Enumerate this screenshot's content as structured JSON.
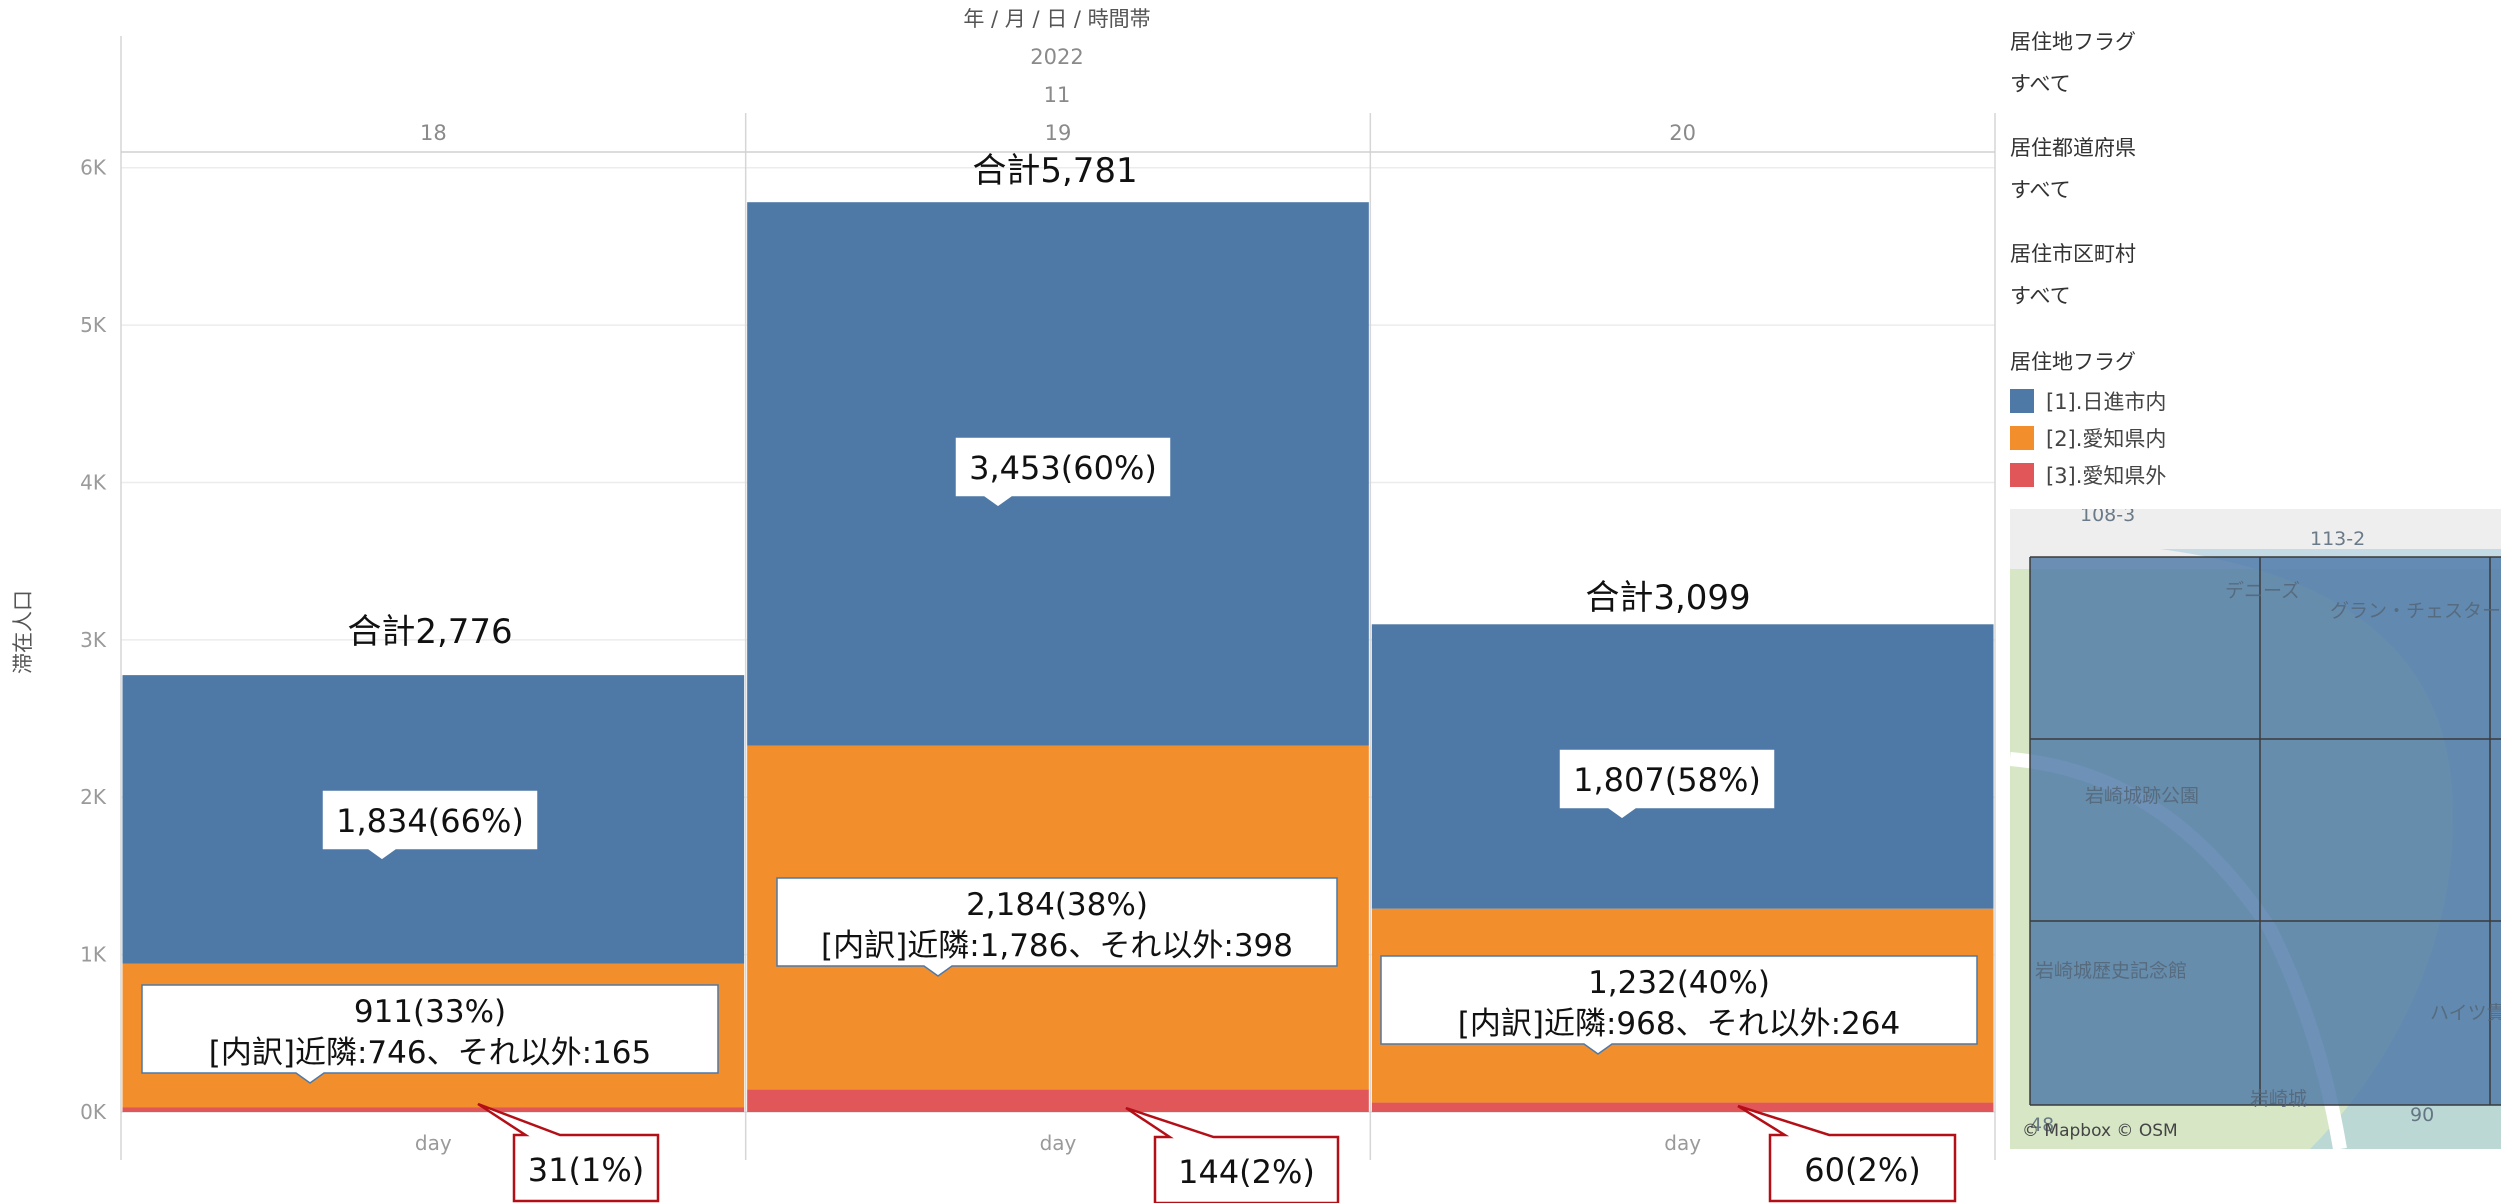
{
  "header": {
    "title": "年 / 月 / 日 / 時間帯",
    "year": "2022",
    "month": "11",
    "days": [
      "18",
      "19",
      "20"
    ]
  },
  "chart_data": {
    "type": "bar",
    "stacked": true,
    "categories": [
      "18",
      "19",
      "20"
    ],
    "x_tick_label": "day",
    "ylabel": "滞在人口",
    "ylim": [
      0,
      6100
    ],
    "yticks": [
      "0K",
      "1K",
      "2K",
      "3K",
      "4K",
      "5K",
      "6K"
    ],
    "ytick_values": [
      0,
      1000,
      2000,
      3000,
      4000,
      5000,
      6000
    ],
    "series": [
      {
        "name": "[3].愛知県外",
        "values": [
          31,
          144,
          60
        ],
        "color": "#e15759"
      },
      {
        "name": "[2].愛知県内",
        "values": [
          911,
          2184,
          1232
        ],
        "color": "#f28e2b"
      },
      {
        "name": "[1].日進市内",
        "values": [
          1834,
          3453,
          1807
        ],
        "color": "#4e79a7"
      }
    ],
    "totals": [
      2776,
      5781,
      3099
    ],
    "total_labels": [
      "合計2,776",
      "合計5,781",
      "合計3,099"
    ],
    "annotations": {
      "blue": [
        "1,834(66%)",
        "3,453(60%)",
        "1,807(58%)"
      ],
      "orange_line1": [
        "911(33%)",
        "2,184(38%)",
        "1,232(40%)"
      ],
      "orange_line2": [
        "[内訳]近隣:746、それ以外:165",
        "[内訳]近隣:1,786、それ以外:398",
        "[内訳]近隣:968、それ以外:264"
      ],
      "red": [
        "31(1%)",
        "144(2%)",
        "60(2%)"
      ]
    },
    "grid": true
  },
  "filters": [
    {
      "title": "居住地フラグ",
      "value": "すべて"
    },
    {
      "title": "居住都道府県",
      "value": "すべて"
    },
    {
      "title": "居住市区町村",
      "value": "すべて"
    }
  ],
  "legend": {
    "title": "居住地フラグ",
    "items": [
      {
        "label": "[1].日進市内",
        "color": "#4e79a7"
      },
      {
        "label": "[2].愛知県内",
        "color": "#f28e2b"
      },
      {
        "label": "[3].愛知県外",
        "color": "#e15759"
      }
    ]
  },
  "map": {
    "labels": [
      "113-2",
      "デニーズ",
      "グラン・チェスター",
      "岩崎城跡公園",
      "岩崎城歴史記念館",
      "岩崎城",
      "ハイツ貴",
      "48",
      "90",
      "108-3"
    ],
    "credit": "© Mapbox © OSM"
  }
}
